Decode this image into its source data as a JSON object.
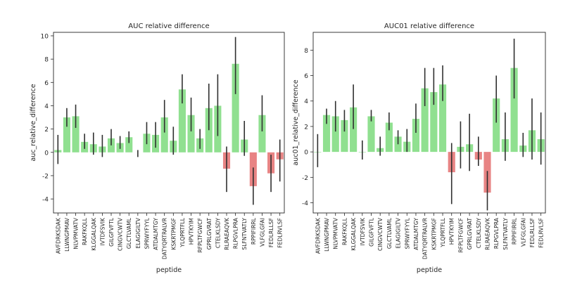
{
  "colors": {
    "positive": "#90e090",
    "negative": "#e88484",
    "errorbar": "#303030"
  },
  "chart_data": [
    {
      "type": "bar",
      "title": "AUC relative difference",
      "xlabel": "peptide",
      "ylabel": "auc_relative_difference",
      "ylim": [
        -5.2,
        10.3
      ],
      "yticks": [
        -4,
        -2,
        0,
        2,
        4,
        6,
        8,
        10
      ],
      "categories": [
        "AVFDRKSDAK",
        "LLWNGPMAV",
        "NLVPMVATV",
        "RAKFKQLL",
        "KLGGALQAK",
        "IVTDFSVIK",
        "GILGFVFTL",
        "CINGVCWTV",
        "GLCTLVAML",
        "ELAGIGILTV",
        "SPRWYFYYL",
        "ATDALMTGY",
        "DATYQRTRALVR",
        "KSKRTPMGF",
        "YLQPRTFLL",
        "HPVTKYIM",
        "RFPLTFGWCF",
        "GPRLGVRAT",
        "CTELKLSDY",
        "RLRAEAQVK",
        "RLPGVLPRA",
        "SLFNTVATLY",
        "RPPIFIRRL",
        "VLFGLGFAI",
        "FEDLRLLSF",
        "FEDLRVLSF"
      ],
      "values": [
        0.2,
        3.0,
        3.1,
        0.9,
        0.7,
        0.5,
        1.2,
        0.8,
        1.3,
        null,
        1.6,
        1.5,
        3.0,
        1.0,
        5.4,
        3.2,
        1.2,
        3.8,
        4.0,
        -1.4,
        7.6,
        1.1,
        -2.9,
        3.2,
        -1.8,
        -0.6
      ],
      "error_low": [
        -1.0,
        2.2,
        2.1,
        0.3,
        -0.2,
        -0.4,
        0.6,
        0.3,
        0.8,
        -0.4,
        0.7,
        0.4,
        1.7,
        -0.2,
        4.2,
        1.8,
        0.3,
        1.9,
        1.4,
        -3.4,
        5.0,
        -0.3,
        -4.5,
        1.8,
        -3.4,
        -2.5
      ],
      "error_high": [
        1.5,
        3.8,
        4.1,
        1.6,
        1.7,
        1.5,
        2.0,
        1.4,
        1.8,
        0.2,
        2.6,
        2.6,
        4.5,
        2.2,
        6.7,
        4.7,
        2.0,
        5.9,
        6.7,
        0.5,
        9.9,
        2.7,
        -1.3,
        4.9,
        -0.2,
        1.1
      ]
    },
    {
      "type": "bar",
      "title": "AUC01 relative difference",
      "xlabel": "peptide",
      "ylabel": "auc01_relative_difference",
      "ylim": [
        -4.8,
        9.4
      ],
      "yticks": [
        -4,
        -2,
        0,
        2,
        4,
        6,
        8
      ],
      "categories": [
        "AVFDRKSDAK",
        "LLWNGPMAV",
        "NLVPMVATV",
        "RAKFKQLL",
        "KLGGALQAK",
        "IVTDFSVIK",
        "GILGFVFTL",
        "CINGVCWTV",
        "GLCTLVAML",
        "ELAGIGILTV",
        "SPRWYFYYL",
        "ATDALMTGY",
        "DATYQRTRALVR",
        "KSKRTPMGF",
        "YLQPRTFLL",
        "HPVTKYIM",
        "RFPLTFGWCF",
        "GPRLGVRAT",
        "CTELKLSDY",
        "RLRAEAQVK",
        "RLPGVLPRA",
        "SLFNTVATLY",
        "RPPIFIRRL",
        "VLFGLGFAI",
        "FEDLRLLSF",
        "FEDLRVLSF"
      ],
      "values": [
        0.0,
        2.9,
        2.8,
        2.5,
        3.5,
        0.0,
        2.8,
        0.3,
        2.3,
        1.2,
        0.8,
        2.6,
        5.0,
        4.7,
        5.3,
        -1.6,
        0.4,
        0.6,
        -0.6,
        -3.2,
        4.2,
        1.0,
        6.6,
        0.5,
        1.7,
        1.0
      ],
      "error_low": [
        -1.2,
        2.2,
        1.6,
        1.6,
        1.8,
        -0.6,
        2.4,
        -0.3,
        1.7,
        0.6,
        0.0,
        1.5,
        3.6,
        3.7,
        4.0,
        -4.1,
        -1.3,
        -1.5,
        -1.1,
        -4.6,
        2.3,
        -0.7,
        4.2,
        -0.4,
        -0.6,
        -1.0
      ],
      "error_high": [
        1.4,
        3.4,
        4.0,
        3.3,
        5.3,
        0.9,
        3.3,
        1.2,
        3.1,
        1.7,
        1.8,
        3.8,
        6.6,
        6.6,
        6.8,
        0.7,
        2.4,
        3.0,
        1.2,
        -1.5,
        6.0,
        3.1,
        8.9,
        1.5,
        4.2,
        3.1
      ]
    }
  ]
}
